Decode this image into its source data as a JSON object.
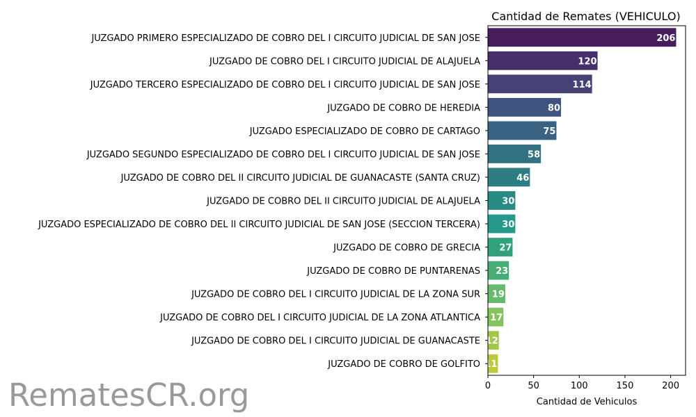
{
  "chart_data": {
    "type": "bar",
    "orientation": "horizontal",
    "title": "Cantidad de Remates (VEHICULO)",
    "xlabel": "Cantidad de Vehiculos",
    "ylabel": "",
    "xlim": [
      0,
      216.3
    ],
    "xticks": [
      0,
      50,
      100,
      150,
      200
    ],
    "grid": false,
    "categories": [
      "JUZGADO PRIMERO ESPECIALIZADO DE COBRO DEL I CIRCUITO JUDICIAL DE SAN JOSE",
      "JUZGADO DE COBRO DEL I CIRCUITO JUDICIAL DE ALAJUELA",
      "JUZGADO TERCERO ESPECIALIZADO DE COBRO DEL I CIRCUITO JUDICIAL DE SAN JOSE",
      "JUZGADO DE COBRO DE HEREDIA",
      "JUZGADO ESPECIALIZADO DE COBRO DE CARTAGO",
      "JUZGADO SEGUNDO ESPECIALIZADO DE COBRO DEL I CIRCUITO JUDICIAL DE SAN JOSE",
      "JUZGADO DE COBRO DEL II CIRCUITO JUDICIAL DE GUANACASTE (SANTA CRUZ)",
      "JUZGADO DE COBRO DEL II CIRCUITO JUDICIAL DE ALAJUELA",
      "JUZGADO ESPECIALIZADO DE COBRO DEL II CIRCUITO JUDICIAL DE SAN JOSE (SECCION TERCERA)",
      "JUZGADO DE COBRO DE GRECIA",
      "JUZGADO DE COBRO DE PUNTARENAS",
      "JUZGADO DE COBRO DEL I CIRCUITO JUDICIAL DE LA ZONA SUR",
      "JUZGADO DE COBRO DEL I CIRCUITO JUDICIAL DE LA ZONA ATLANTICA",
      "JUZGADO DE COBRO DEL I CIRCUITO JUDICIAL DE GUANACASTE",
      "JUZGADO DE COBRO DE GOLFITO"
    ],
    "values": [
      206,
      120,
      114,
      80,
      75,
      58,
      46,
      30,
      30,
      27,
      23,
      19,
      17,
      12,
      11
    ],
    "colors": [
      "#481d5c",
      "#482f6b",
      "#464278",
      "#3f537f",
      "#3a6282",
      "#337283",
      "#2e7d82",
      "#288a82",
      "#23988b",
      "#2fa27d",
      "#47ad75",
      "#66b96d",
      "#85c45d",
      "#a2c648",
      "#bdc93a"
    ],
    "watermark": "RematesCR.org"
  }
}
